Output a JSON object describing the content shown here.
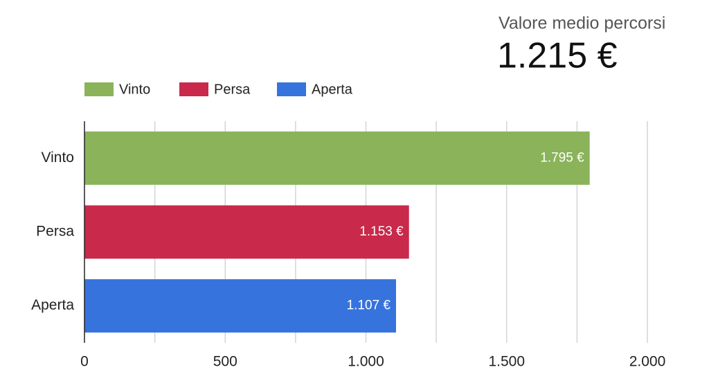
{
  "scorecard": {
    "title": "Valore medio percorsi",
    "value": "1.215 €"
  },
  "chart_data": {
    "type": "bar",
    "orientation": "horizontal",
    "categories": [
      "Vinto",
      "Persa",
      "Aperta"
    ],
    "values": [
      1795,
      1153,
      1107
    ],
    "value_labels": [
      "1.795 €",
      "1.153 €",
      "1.107 €"
    ],
    "colors": [
      "#8ab35a",
      "#c9294a",
      "#3673dd"
    ],
    "xlim": [
      0,
      2000
    ],
    "xticks": [
      0,
      500,
      {
        "value": 1000,
        "label": "1.000"
      },
      {
        "value": 1500,
        "label": "1.500"
      },
      {
        "value": 2000,
        "label": "2.000"
      }
    ],
    "minor_xticks": [
      250,
      750,
      1250,
      1750
    ],
    "grid": true,
    "legend": "top-left"
  }
}
